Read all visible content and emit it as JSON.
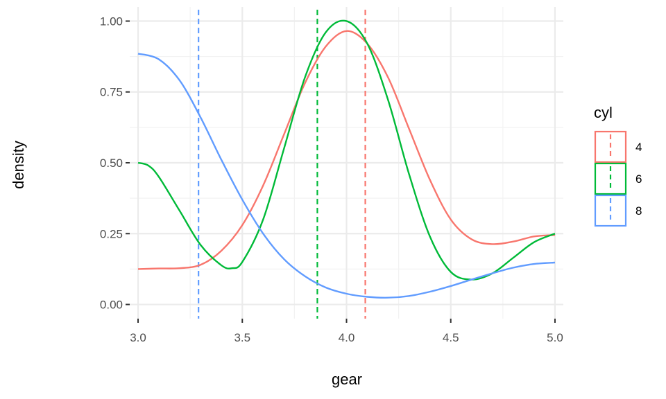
{
  "chart_data": {
    "type": "line",
    "xlabel": "gear",
    "ylabel": "density",
    "xlim": [
      2.96,
      5.04
    ],
    "ylim": [
      -0.05,
      1.05
    ],
    "x_ticks": [
      3.0,
      3.5,
      4.0,
      4.5,
      5.0
    ],
    "x_tick_labels": [
      "3.0",
      "3.5",
      "4.0",
      "4.5",
      "5.0"
    ],
    "y_ticks": [
      0.0,
      0.25,
      0.5,
      0.75,
      1.0
    ],
    "y_tick_labels": [
      "0.00",
      "0.25",
      "0.50",
      "0.75",
      "1.00"
    ],
    "grid": true,
    "legend": {
      "title": "cyl",
      "position": "right"
    },
    "series": [
      {
        "name": "4",
        "color": "#F8766D",
        "mean": 4.09,
        "points": [
          [
            3.0,
            0.125
          ],
          [
            3.1,
            0.127
          ],
          [
            3.2,
            0.128
          ],
          [
            3.3,
            0.14
          ],
          [
            3.4,
            0.19
          ],
          [
            3.5,
            0.28
          ],
          [
            3.6,
            0.42
          ],
          [
            3.7,
            0.6
          ],
          [
            3.8,
            0.78
          ],
          [
            3.9,
            0.91
          ],
          [
            4.0,
            0.965
          ],
          [
            4.1,
            0.92
          ],
          [
            4.2,
            0.8
          ],
          [
            4.3,
            0.62
          ],
          [
            4.4,
            0.44
          ],
          [
            4.5,
            0.3
          ],
          [
            4.6,
            0.23
          ],
          [
            4.7,
            0.213
          ],
          [
            4.8,
            0.222
          ],
          [
            4.9,
            0.24
          ],
          [
            5.0,
            0.245
          ]
        ]
      },
      {
        "name": "6",
        "color": "#00BA38",
        "mean": 3.86,
        "points": [
          [
            3.0,
            0.5
          ],
          [
            3.05,
            0.49
          ],
          [
            3.1,
            0.45
          ],
          [
            3.2,
            0.33
          ],
          [
            3.3,
            0.21
          ],
          [
            3.4,
            0.138
          ],
          [
            3.45,
            0.128
          ],
          [
            3.5,
            0.15
          ],
          [
            3.6,
            0.3
          ],
          [
            3.7,
            0.55
          ],
          [
            3.8,
            0.8
          ],
          [
            3.9,
            0.96
          ],
          [
            4.0,
            1.0
          ],
          [
            4.1,
            0.92
          ],
          [
            4.2,
            0.72
          ],
          [
            4.3,
            0.46
          ],
          [
            4.4,
            0.24
          ],
          [
            4.5,
            0.115
          ],
          [
            4.6,
            0.088
          ],
          [
            4.7,
            0.11
          ],
          [
            4.8,
            0.165
          ],
          [
            4.9,
            0.22
          ],
          [
            5.0,
            0.25
          ]
        ]
      },
      {
        "name": "8",
        "color": "#619CFF",
        "mean": 3.29,
        "points": [
          [
            3.0,
            0.885
          ],
          [
            3.1,
            0.865
          ],
          [
            3.2,
            0.79
          ],
          [
            3.3,
            0.66
          ],
          [
            3.4,
            0.51
          ],
          [
            3.5,
            0.37
          ],
          [
            3.6,
            0.25
          ],
          [
            3.7,
            0.16
          ],
          [
            3.8,
            0.1
          ],
          [
            3.9,
            0.06
          ],
          [
            4.0,
            0.038
          ],
          [
            4.1,
            0.027
          ],
          [
            4.2,
            0.024
          ],
          [
            4.3,
            0.03
          ],
          [
            4.4,
            0.045
          ],
          [
            4.5,
            0.065
          ],
          [
            4.6,
            0.088
          ],
          [
            4.7,
            0.11
          ],
          [
            4.8,
            0.13
          ],
          [
            4.9,
            0.143
          ],
          [
            5.0,
            0.148
          ]
        ]
      }
    ]
  }
}
